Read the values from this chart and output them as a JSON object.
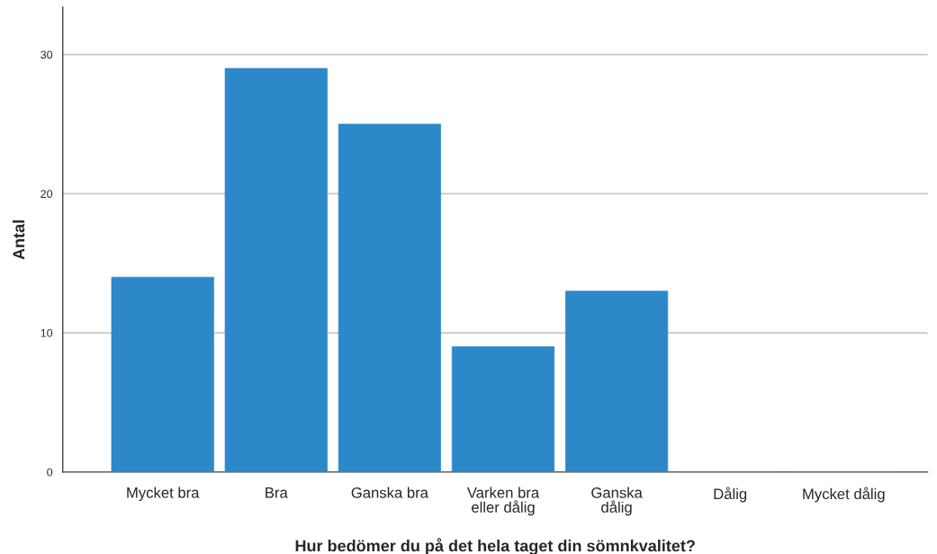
{
  "chart_data": {
    "type": "bar",
    "xlabel": "Hur bedömer du på det hela taget din sömnkvalitet?",
    "ylabel": "Antal",
    "categories": [
      "Mycket bra",
      "Bra",
      "Ganska bra",
      "Varken bra\neller dålig",
      "Ganska\ndålig",
      "Dålig",
      "Mycket dålig"
    ],
    "values": [
      14,
      29,
      25,
      9,
      13,
      0,
      0
    ],
    "color": "#2d88c9",
    "ylim": [
      0,
      33.4
    ],
    "yticks": [
      0,
      10,
      20,
      30
    ],
    "grid": "y"
  }
}
